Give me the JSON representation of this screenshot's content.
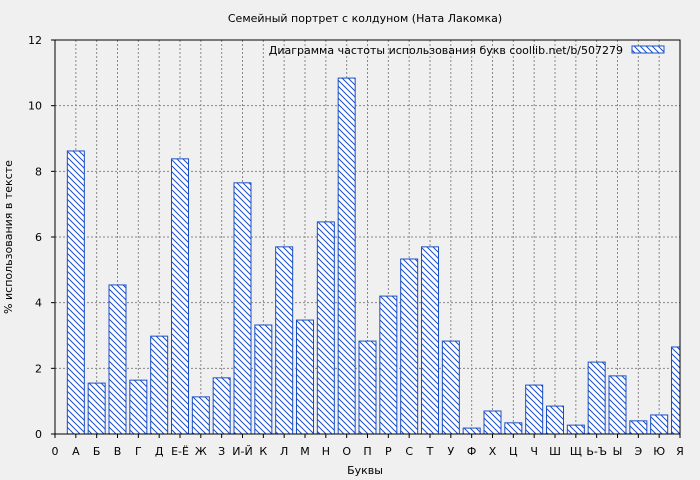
{
  "chart_data": {
    "type": "bar",
    "title": "Семейный портрет с колдуном (Ната Лакомка)",
    "xlabel": "Буквы",
    "ylabel": "% использования в тексте",
    "legend": {
      "label": "Диаграмма частоты использования букв  coollib.net/b/507279",
      "position": "top-right"
    },
    "x_origin_label": "0",
    "categories": [
      "А",
      "Б",
      "В",
      "Г",
      "Д",
      "Е-Ё",
      "Ж",
      "З",
      "И-Й",
      "К",
      "Л",
      "М",
      "Н",
      "О",
      "П",
      "Р",
      "С",
      "Т",
      "У",
      "Ф",
      "Х",
      "Ц",
      "Ч",
      "Ш",
      "Щ",
      "Ь-Ъ",
      "Ы",
      "Э",
      "Ю",
      "Я"
    ],
    "values": [
      8.62,
      1.55,
      4.54,
      1.64,
      2.98,
      8.38,
      1.13,
      1.71,
      7.65,
      3.32,
      5.7,
      3.47,
      6.46,
      10.84,
      2.83,
      4.2,
      5.33,
      5.7,
      2.83,
      0.18,
      0.7,
      0.34,
      1.49,
      0.85,
      0.27,
      2.19,
      1.77,
      0.4,
      0.58,
      2.65
    ],
    "ylim": [
      0,
      12
    ],
    "yticks": [
      0,
      2,
      4,
      6,
      8,
      10,
      12
    ],
    "grid": true,
    "bar_color": "#1a4fc4"
  }
}
